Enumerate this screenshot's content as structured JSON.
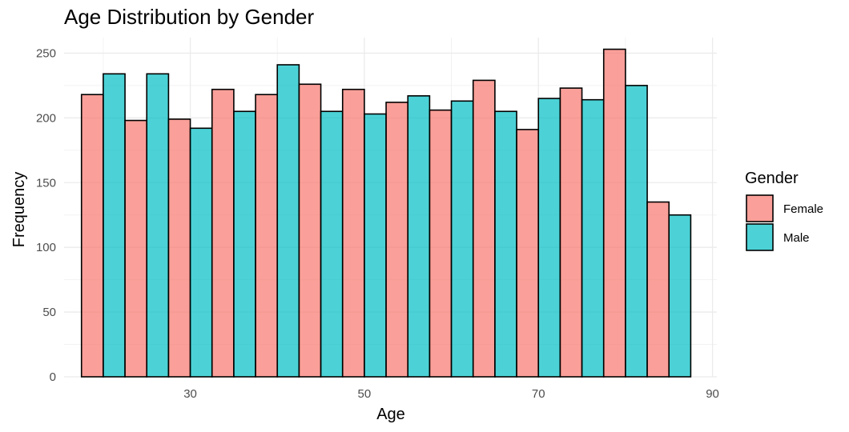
{
  "chart_data": {
    "type": "bar",
    "title": "Age Distribution by Gender",
    "xlabel": "Age",
    "ylabel": "Frequency",
    "xlim": [
      15.5,
      90.5
    ],
    "ylim": [
      0,
      262
    ],
    "xticks": [
      30,
      50,
      70,
      90
    ],
    "yticks": [
      0,
      50,
      100,
      150,
      200,
      250
    ],
    "grid": true,
    "legend": {
      "title": "Gender",
      "placement": "right"
    },
    "bin_centers": [
      20,
      25,
      30,
      35,
      40,
      45,
      50,
      55,
      60,
      65,
      70,
      75,
      80,
      85
    ],
    "group_width": 5,
    "series": [
      {
        "name": "Female",
        "color": "#F8766D",
        "values": [
          218,
          198,
          199,
          222,
          218,
          226,
          222,
          212,
          206,
          229,
          191,
          223,
          253,
          135
        ]
      },
      {
        "name": "Male",
        "color": "#00BFC4",
        "values": [
          234,
          234,
          192,
          205,
          241,
          205,
          203,
          217,
          213,
          205,
          215,
          214,
          225,
          125
        ]
      }
    ]
  }
}
